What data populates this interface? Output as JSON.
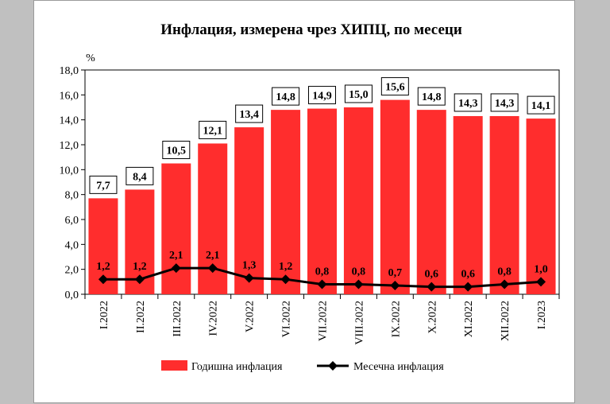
{
  "chart_data": {
    "type": "bar",
    "title": "Инфлация, измерена чрез ХИПЦ, по месеци",
    "ylabel": "%",
    "xlabel": "",
    "ylim": [
      0,
      18
    ],
    "yticks": [
      "0,0",
      "2,0",
      "4,0",
      "6,0",
      "8,0",
      "10,0",
      "12,0",
      "14,0",
      "16,0",
      "18,0"
    ],
    "categories": [
      "I.2022",
      "II.2022",
      "III.2022",
      "IV.2022",
      "V.2022",
      "VI.2022",
      "VII.2022",
      "VIII.2022",
      "IX.2022",
      "X.2022",
      "XI.2022",
      "XII.2022",
      "I.2023"
    ],
    "series": [
      {
        "name": "Годишна инфлация",
        "type": "bar",
        "color": "#ff2d2d",
        "values": [
          7.7,
          8.4,
          10.5,
          12.1,
          13.4,
          14.8,
          14.9,
          15.0,
          15.6,
          14.8,
          14.3,
          14.3,
          14.1
        ],
        "labels": [
          "7,7",
          "8,4",
          "10,5",
          "12,1",
          "13,4",
          "14,8",
          "14,9",
          "15,0",
          "15,6",
          "14,8",
          "14,3",
          "14,3",
          "14,1"
        ]
      },
      {
        "name": "Месечна инфлация",
        "type": "line",
        "color": "#000000",
        "values": [
          1.2,
          1.2,
          2.1,
          2.1,
          1.3,
          1.2,
          0.8,
          0.8,
          0.7,
          0.6,
          0.6,
          0.8,
          1.0
        ],
        "labels": [
          "1,2",
          "1,2",
          "2,1",
          "2,1",
          "1,3",
          "1,2",
          "0,8",
          "0,8",
          "0,7",
          "0,6",
          "0,6",
          "0,8",
          "1,0"
        ]
      }
    ],
    "legend_position": "bottom",
    "grid": false
  }
}
